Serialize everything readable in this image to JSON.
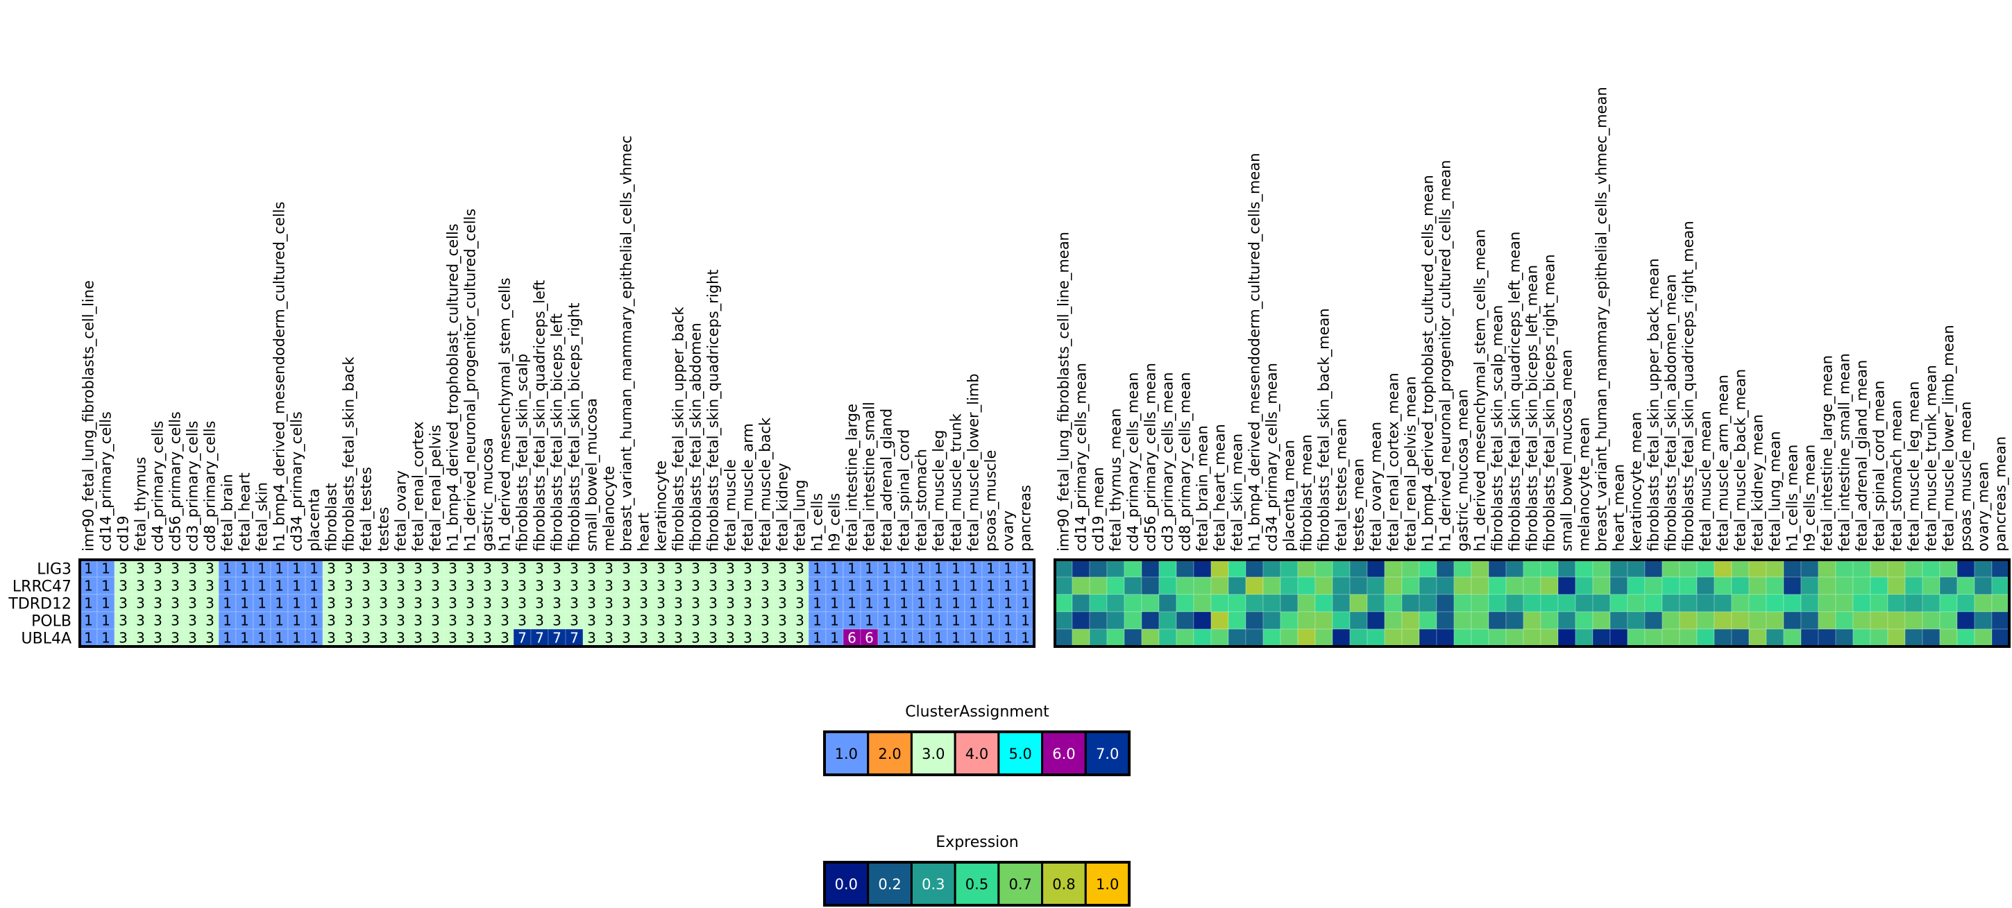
{
  "chart_data": [
    {
      "type": "heatmap",
      "name": "cluster-assignment-heatmap",
      "rows": [
        "LIG3",
        "LRRC47",
        "TDRD12",
        "POLB",
        "UBL4A"
      ],
      "columns": [
        "imr90_fetal_lung_fibroblasts_cell_line",
        "cd14_primary_cells",
        "cd19",
        "fetal_thymus",
        "cd4_primary_cells",
        "cd56_primary_cells",
        "cd3_primary_cells",
        "cd8_primary_cells",
        "fetal_brain",
        "fetal_heart",
        "fetal_skin",
        "h1_bmp4_derived_mesendoderm_cultured_cells",
        "cd34_primary_cells",
        "placenta",
        "fibroblast",
        "fibroblasts_fetal_skin_back",
        "fetal_testes",
        "testes",
        "fetal_ovary",
        "fetal_renal_cortex",
        "fetal_renal_pelvis",
        "h1_bmp4_derived_trophoblast_cultured_cells",
        "h1_derived_neuronal_progenitor_cultured_cells",
        "gastric_mucosa",
        "h1_derived_mesenchymal_stem_cells",
        "fibroblasts_fetal_skin_scalp",
        "fibroblasts_fetal_skin_quadriceps_left",
        "fibroblasts_fetal_skin_biceps_left",
        "fibroblasts_fetal_skin_biceps_right",
        "small_bowel_mucosa",
        "melanocyte",
        "breast_variant_human_mammary_epithelial_cells_vhmec",
        "heart",
        "keratinocyte",
        "fibroblasts_fetal_skin_upper_back",
        "fibroblasts_fetal_skin_abdomen",
        "fibroblasts_fetal_skin_quadriceps_right",
        "fetal_muscle",
        "fetal_muscle_arm",
        "fetal_muscle_back",
        "fetal_kidney",
        "fetal_lung",
        "h1_cells",
        "h9_cells",
        "fetal_intestine_large",
        "fetal_intestine_small",
        "fetal_adrenal_gland",
        "fetal_spinal_cord",
        "fetal_stomach",
        "fetal_muscle_leg",
        "fetal_muscle_trunk",
        "fetal_muscle_lower_limb",
        "psoas_muscle",
        "ovary",
        "pancreas"
      ],
      "values": [
        [
          1,
          1,
          3,
          3,
          3,
          3,
          3,
          3,
          1,
          1,
          1,
          1,
          1,
          1,
          3,
          3,
          3,
          3,
          3,
          3,
          3,
          3,
          3,
          3,
          3,
          3,
          3,
          3,
          3,
          3,
          3,
          3,
          3,
          3,
          3,
          3,
          3,
          3,
          3,
          3,
          3,
          3,
          1,
          1,
          1,
          1,
          1,
          1,
          1,
          1,
          1,
          1,
          1,
          1,
          1
        ],
        [
          1,
          1,
          3,
          3,
          3,
          3,
          3,
          3,
          1,
          1,
          1,
          1,
          1,
          1,
          3,
          3,
          3,
          3,
          3,
          3,
          3,
          3,
          3,
          3,
          3,
          3,
          3,
          3,
          3,
          3,
          3,
          3,
          3,
          3,
          3,
          3,
          3,
          3,
          3,
          3,
          3,
          3,
          1,
          1,
          1,
          1,
          1,
          1,
          1,
          1,
          1,
          1,
          1,
          1,
          1
        ],
        [
          1,
          1,
          3,
          3,
          3,
          3,
          3,
          3,
          1,
          1,
          1,
          1,
          1,
          1,
          3,
          3,
          3,
          3,
          3,
          3,
          3,
          3,
          3,
          3,
          3,
          3,
          3,
          3,
          3,
          3,
          3,
          3,
          3,
          3,
          3,
          3,
          3,
          3,
          3,
          3,
          3,
          3,
          1,
          1,
          1,
          1,
          1,
          1,
          1,
          1,
          1,
          1,
          1,
          1,
          1
        ],
        [
          1,
          1,
          3,
          3,
          3,
          3,
          3,
          3,
          1,
          1,
          1,
          1,
          1,
          1,
          3,
          3,
          3,
          3,
          3,
          3,
          3,
          3,
          3,
          3,
          3,
          3,
          3,
          3,
          3,
          3,
          3,
          3,
          3,
          3,
          3,
          3,
          3,
          3,
          3,
          3,
          3,
          3,
          1,
          1,
          1,
          1,
          1,
          1,
          1,
          1,
          1,
          1,
          1,
          1,
          1
        ],
        [
          1,
          1,
          3,
          3,
          3,
          3,
          3,
          3,
          1,
          1,
          1,
          1,
          1,
          1,
          3,
          3,
          3,
          3,
          3,
          3,
          3,
          3,
          3,
          3,
          3,
          7,
          7,
          7,
          7,
          3,
          3,
          3,
          3,
          3,
          3,
          3,
          3,
          3,
          3,
          3,
          3,
          3,
          1,
          1,
          6,
          6,
          1,
          1,
          1,
          1,
          1,
          1,
          1,
          1,
          1
        ]
      ],
      "legend": {
        "title": "ClusterAssignment",
        "labels": [
          "1.0",
          "2.0",
          "3.0",
          "4.0",
          "5.0",
          "6.0",
          "7.0"
        ],
        "colors": [
          "#6699ff",
          "#ff9933",
          "#ccffcc",
          "#ff9999",
          "#00ffff",
          "#990099",
          "#003399"
        ]
      }
    },
    {
      "type": "heatmap",
      "name": "expression-heatmap",
      "rows": [
        "LIG3",
        "LRRC47",
        "TDRD12",
        "POLB",
        "UBL4A"
      ],
      "columns": [
        "imr90_fetal_lung_fibroblasts_cell_line_mean",
        "cd14_primary_cells_mean",
        "cd19_mean",
        "fetal_thymus_mean",
        "cd4_primary_cells_mean",
        "cd56_primary_cells_mean",
        "cd3_primary_cells_mean",
        "cd8_primary_cells_mean",
        "fetal_brain_mean",
        "fetal_heart_mean",
        "fetal_skin_mean",
        "h1_bmp4_derived_mesendoderm_cultured_cells_mean",
        "cd34_primary_cells_mean",
        "placenta_mean",
        "fibroblast_mean",
        "fibroblasts_fetal_skin_back_mean",
        "fetal_testes_mean",
        "testes_mean",
        "fetal_ovary_mean",
        "fetal_renal_cortex_mean",
        "fetal_renal_pelvis_mean",
        "h1_bmp4_derived_trophoblast_cultured_cells_mean",
        "h1_derived_neuronal_progenitor_cultured_cells_mean",
        "gastric_mucosa_mean",
        "h1_derived_mesenchymal_stem_cells_mean",
        "fibroblasts_fetal_skin_scalp_mean",
        "fibroblasts_fetal_skin_quadriceps_left_mean",
        "fibroblasts_fetal_skin_biceps_left_mean",
        "fibroblasts_fetal_skin_biceps_right_mean",
        "small_bowel_mucosa_mean",
        "melanocyte_mean",
        "breast_variant_human_mammary_epithelial_cells_vhmec_mean",
        "heart_mean",
        "keratinocyte_mean",
        "fibroblasts_fetal_skin_upper_back_mean",
        "fibroblasts_fetal_skin_abdomen_mean",
        "fibroblasts_fetal_skin_quadriceps_right_mean",
        "fetal_muscle_mean",
        "fetal_muscle_arm_mean",
        "fetal_muscle_back_mean",
        "fetal_kidney_mean",
        "fetal_lung_mean",
        "h1_cells_mean",
        "h9_cells_mean",
        "fetal_intestine_large_mean",
        "fetal_intestine_small_mean",
        "fetal_adrenal_gland_mean",
        "fetal_spinal_cord_mean",
        "fetal_stomach_mean",
        "fetal_muscle_leg_mean",
        "fetal_muscle_trunk_mean",
        "fetal_muscle_lower_limb_mean",
        "psoas_muscle_mean",
        "ovary_mean",
        "pancreas_mean"
      ],
      "values": [
        [
          0.28,
          0.08,
          0.2,
          0.3,
          0.55,
          0.1,
          0.48,
          0.17,
          0.05,
          0.8,
          0.5,
          0.16,
          0.31,
          0.42,
          0.67,
          0.6,
          0.4,
          0.26,
          0.06,
          0.68,
          0.62,
          0.52,
          0.17,
          0.56,
          0.7,
          0.13,
          0.25,
          0.56,
          0.55,
          0.28,
          0.52,
          0.6,
          0.28,
          0.28,
          0.13,
          0.63,
          0.6,
          0.54,
          0.81,
          0.65,
          0.76,
          0.73,
          0.15,
          0.2,
          0.68,
          0.57,
          0.57,
          0.7,
          0.72,
          0.6,
          0.54,
          0.6,
          0.05,
          0.25,
          0.11
        ],
        [
          0.32,
          0.68,
          0.65,
          0.52,
          0.3,
          0.17,
          0.46,
          0.6,
          0.62,
          0.7,
          0.3,
          0.8,
          0.65,
          0.43,
          0.49,
          0.68,
          0.32,
          0.28,
          0.34,
          0.7,
          0.57,
          0.32,
          0.29,
          0.7,
          0.7,
          0.52,
          0.63,
          0.63,
          0.72,
          0.05,
          0.44,
          0.63,
          0.25,
          0.49,
          0.57,
          0.49,
          0.52,
          0.28,
          0.56,
          0.45,
          0.65,
          0.57,
          0.09,
          0.35,
          0.65,
          0.6,
          0.57,
          0.49,
          0.72,
          0.44,
          0.6,
          0.28,
          0.57,
          0.28,
          0.43
        ],
        [
          0.52,
          0.28,
          0.45,
          0.36,
          0.55,
          0.57,
          0.26,
          0.52,
          0.63,
          0.52,
          0.52,
          0.38,
          0.36,
          0.3,
          0.65,
          0.49,
          0.31,
          0.7,
          0.34,
          0.57,
          0.3,
          0.31,
          0.16,
          0.57,
          0.6,
          0.46,
          0.36,
          0.46,
          0.46,
          0.45,
          0.34,
          0.34,
          0.52,
          0.57,
          0.52,
          0.36,
          0.36,
          0.32,
          0.34,
          0.6,
          0.55,
          0.5,
          0.49,
          0.4,
          0.63,
          0.63,
          0.49,
          0.55,
          0.4,
          0.36,
          0.4,
          0.52,
          0.43,
          0.65,
          0.63
        ],
        [
          0.29,
          0.08,
          0.2,
          0.29,
          0.57,
          0.1,
          0.38,
          0.17,
          0.04,
          0.82,
          0.52,
          0.16,
          0.29,
          0.55,
          0.68,
          0.69,
          0.46,
          0.29,
          0.06,
          0.65,
          0.73,
          0.55,
          0.17,
          0.63,
          0.63,
          0.16,
          0.2,
          0.7,
          0.6,
          0.28,
          0.55,
          0.65,
          0.25,
          0.31,
          0.19,
          0.65,
          0.74,
          0.65,
          0.76,
          0.74,
          0.68,
          0.69,
          0.16,
          0.2,
          0.68,
          0.56,
          0.68,
          0.72,
          0.72,
          0.68,
          0.63,
          0.6,
          0.05,
          0.25,
          0.11
        ],
        [
          0.2,
          0.7,
          0.34,
          0.56,
          0.15,
          0.7,
          0.43,
          0.6,
          0.49,
          0.6,
          0.22,
          0.2,
          0.52,
          0.63,
          0.8,
          0.65,
          0.04,
          0.44,
          0.47,
          0.72,
          0.72,
          0.06,
          0.05,
          0.55,
          0.55,
          0.6,
          0.65,
          0.69,
          0.7,
          0.02,
          0.38,
          0.06,
          0.03,
          0.6,
          0.63,
          0.65,
          0.63,
          0.48,
          0.19,
          0.16,
          0.72,
          0.3,
          0.6,
          0.1,
          0.1,
          0.2,
          0.55,
          0.6,
          0.74,
          0.21,
          0.16,
          0.65,
          0.52,
          0.65,
          0.09
        ]
      ],
      "colorscale": {
        "min": 0.0,
        "max": 1.0,
        "stops": [
          "#001886",
          "#145a88",
          "#229c90",
          "#33db93",
          "#74d262",
          "#b6ca33",
          "#fbc100"
        ]
      },
      "legend": {
        "title": "Expression",
        "labels": [
          "0.0",
          "0.2",
          "0.3",
          "0.5",
          "0.7",
          "0.8",
          "1.0"
        ],
        "colors": [
          "#001886",
          "#145a88",
          "#229c90",
          "#33db93",
          "#74d262",
          "#b6ca33",
          "#fbc100"
        ],
        "text_colors": [
          "#ffffff",
          "#ffffff",
          "#ffffff",
          "#000000",
          "#000000",
          "#000000",
          "#000000"
        ]
      }
    }
  ]
}
